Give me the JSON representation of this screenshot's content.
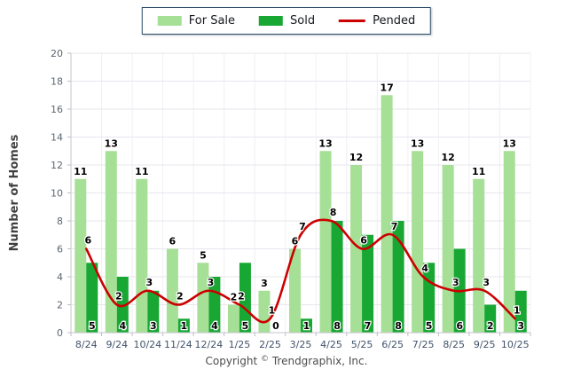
{
  "legend": {
    "items": [
      {
        "label": "For Sale",
        "color": "#a6df96",
        "type": "swatch"
      },
      {
        "label": "Sold",
        "color": "#18a733",
        "type": "swatch"
      },
      {
        "label": "Pended",
        "color": "#cc0000",
        "type": "line"
      }
    ]
  },
  "footer": {
    "copyright_word": "Copyright",
    "copyright_symbol": "©",
    "copyright_company": "Trendgraphix, Inc."
  },
  "chart_data": {
    "type": "bar",
    "categories": [
      "8/24",
      "9/24",
      "10/24",
      "11/24",
      "12/24",
      "1/25",
      "2/25",
      "3/25",
      "4/25",
      "5/25",
      "6/25",
      "7/25",
      "8/25",
      "9/25",
      "10/25"
    ],
    "series": [
      {
        "name": "For Sale",
        "type": "bar",
        "color": "#a6df96",
        "values": [
          11,
          13,
          11,
          6,
          5,
          2,
          3,
          6,
          13,
          12,
          17,
          13,
          12,
          11,
          13
        ]
      },
      {
        "name": "Sold",
        "type": "bar",
        "color": "#18a733",
        "values": [
          5,
          4,
          3,
          1,
          4,
          5,
          0,
          1,
          8,
          7,
          8,
          5,
          6,
          2,
          3
        ]
      },
      {
        "name": "Pended",
        "type": "line",
        "color": "#cc0000",
        "values": [
          6,
          2,
          3,
          2,
          3,
          2,
          1,
          7,
          8,
          6,
          7,
          4,
          3,
          3,
          1
        ]
      }
    ],
    "title": "",
    "xlabel": "",
    "ylabel": "Number of Homes",
    "ylim": [
      0,
      20
    ],
    "ytick_step": 2,
    "grid": true,
    "legend_position": "top",
    "data_labels": true
  },
  "colors": {
    "grid_h": "#e7e7ee",
    "grid_v": "#f0f0f5",
    "axis": "#c4c4cc",
    "tick": "#bdbdc6",
    "y_tick_text": "#5c6670",
    "x_tick_text": "#42526b",
    "data_label": "#000000",
    "axis_title": "#3f3f3f"
  }
}
